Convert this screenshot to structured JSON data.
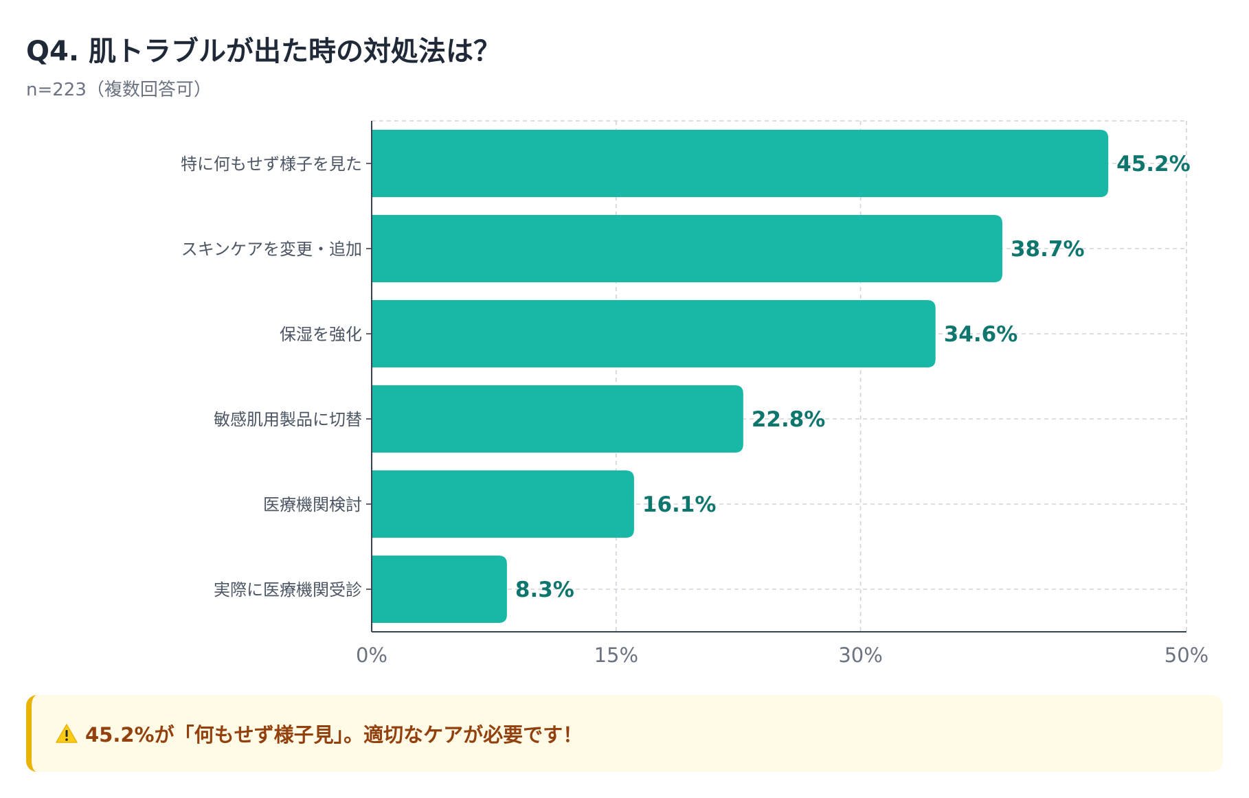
{
  "header": {
    "title": "Q4. 肌トラブルが出た時の対処法は？",
    "subtitle": "n=223（複数回答可）"
  },
  "colors": {
    "bar": "#17b8a6",
    "label": "#0f766e",
    "grid": "#cfd4da",
    "axis": "#374151",
    "category_text": "#4b5563",
    "tick_text": "#6b7280"
  },
  "chart_data": {
    "type": "bar",
    "orientation": "horizontal",
    "title": "Q4. 肌トラブルが出た時の対処法は？",
    "subtitle": "n=223（複数回答可）",
    "xlabel": "",
    "ylabel": "",
    "categories": [
      "特に何もせず様子を見た",
      "スキンケアを変更・追加",
      "保湿を強化",
      "敏感肌用製品に切替",
      "医療機関検討",
      "実際に医療機関受診"
    ],
    "values": [
      45.2,
      38.7,
      34.6,
      22.8,
      16.1,
      8.3
    ],
    "value_labels": [
      "45.2%",
      "38.7%",
      "34.6%",
      "22.8%",
      "16.1%",
      "8.3%"
    ],
    "xlim": [
      0,
      50
    ],
    "xticks": [
      0,
      15,
      30,
      50
    ],
    "xtick_labels": [
      "0%",
      "15%",
      "30%",
      "50%"
    ],
    "grid": true,
    "legend": "none"
  },
  "note": {
    "icon": "warning-icon",
    "text": "45.2%が「何もせず様子見」。適切なケアが必要です！"
  }
}
